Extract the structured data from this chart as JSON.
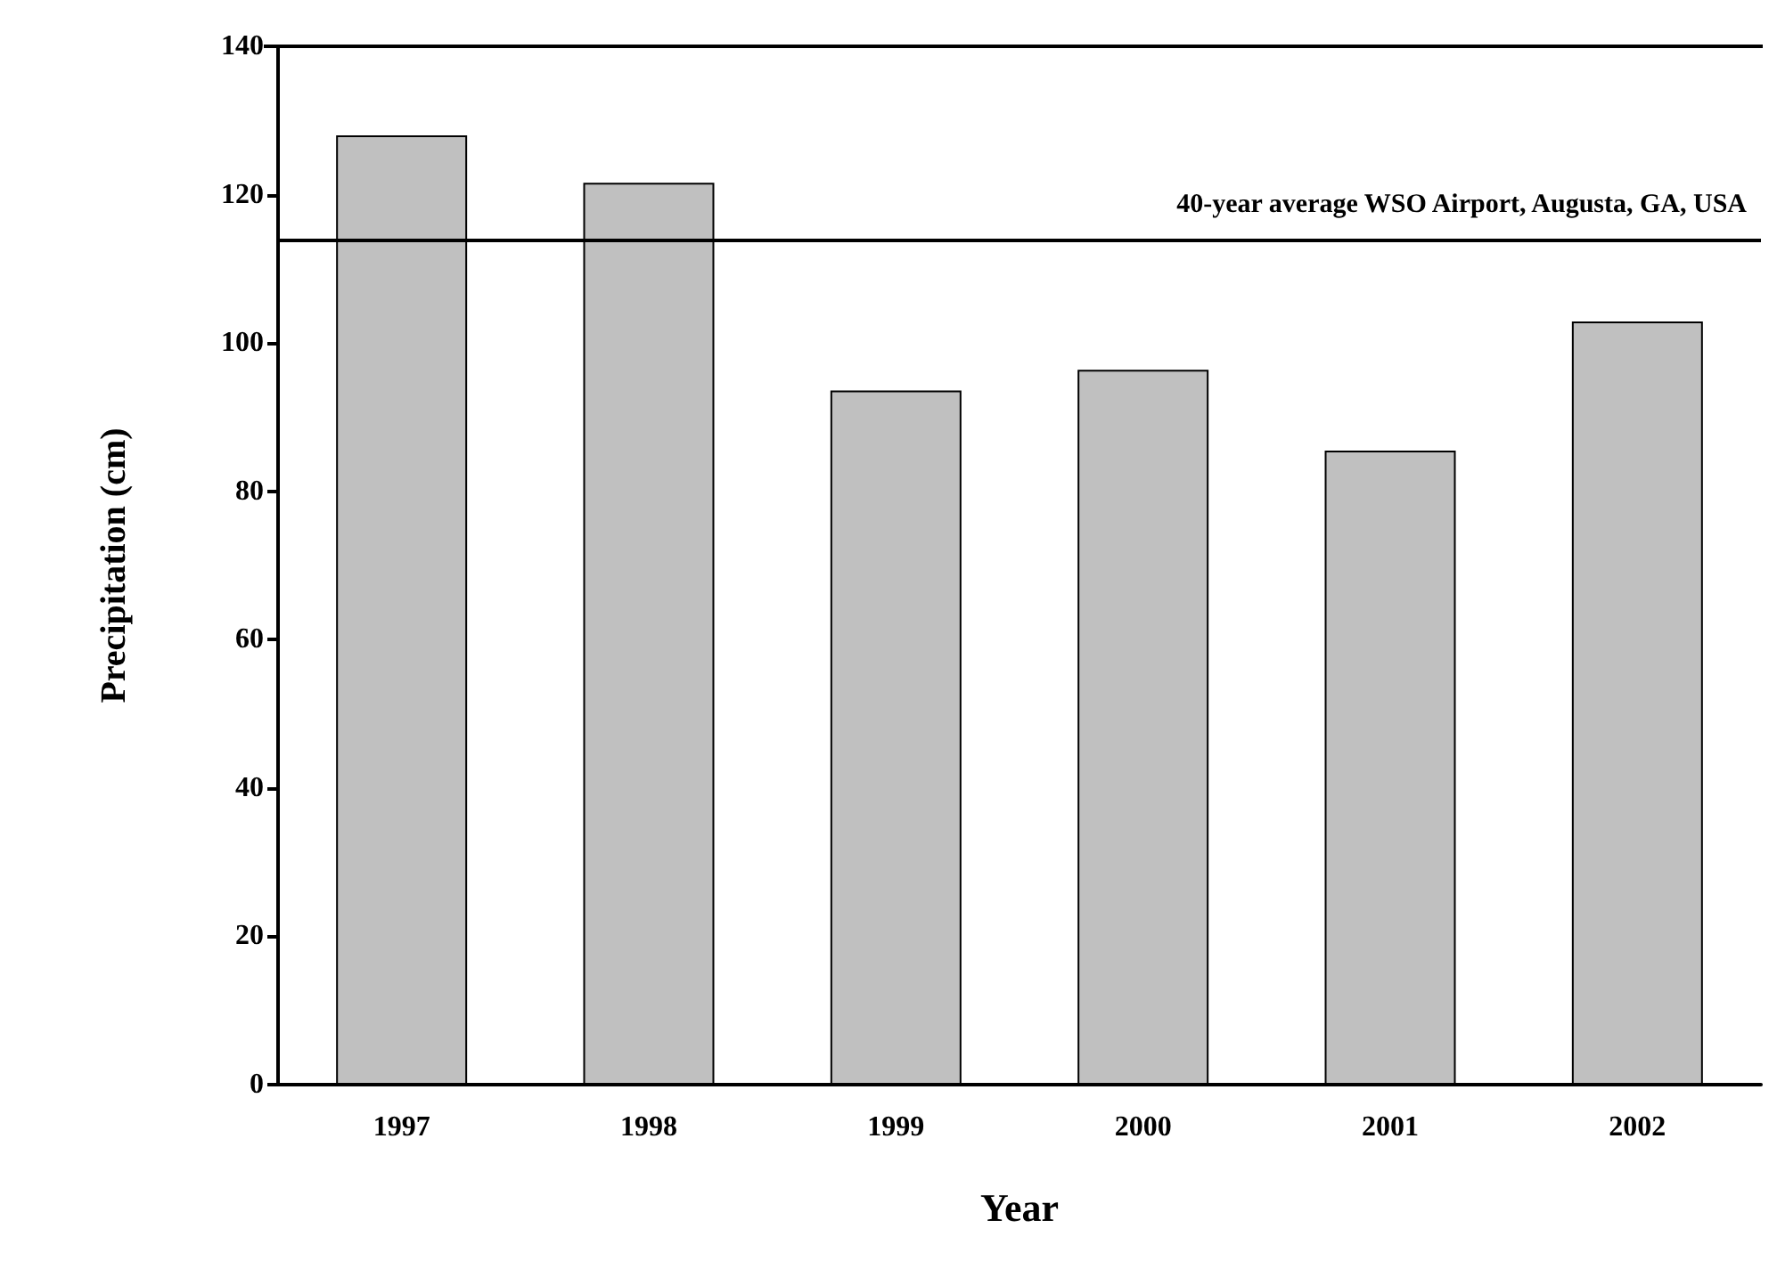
{
  "chart_data": {
    "type": "bar",
    "xlabel": "Year",
    "ylabel": "Precipitation (cm)",
    "categories": [
      "1997",
      "1998",
      "1999",
      "2000",
      "2001",
      "2002"
    ],
    "values": [
      128,
      121.6,
      93.6,
      96.4,
      85.5,
      102.9
    ],
    "color": "#c0c0c0",
    "ylim": [
      0,
      140
    ],
    "yticks": [
      0,
      20,
      40,
      60,
      80,
      100,
      120,
      140
    ],
    "grid": false,
    "ref_lines": [
      {
        "axis": "y",
        "value": 114,
        "label": "40-year average WSO Airport, Augusta, GA, USA",
        "color": "#000000"
      }
    ]
  }
}
